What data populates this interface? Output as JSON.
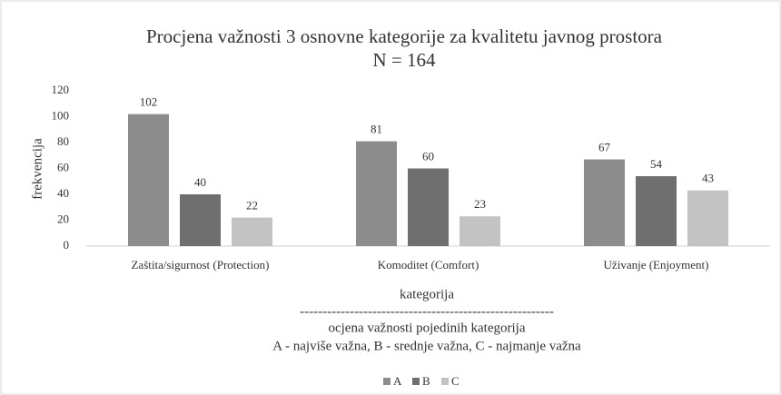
{
  "chart_data": {
    "type": "bar",
    "title": "Procjena važnosti 3 osnovne kategorije za kvalitetu javnog prostora",
    "subtitle": "N = 164",
    "ylabel": "frekvencija",
    "xlabel": [
      "kategorija",
      "--------------------------------------------------------",
      "ocjena važnosti pojedinih kategorija",
      "A - najviše važna, B - srednje važna, C - najmanje važna"
    ],
    "categories": [
      "Zaštita/sigurnost (Protection)",
      "Komoditet (Comfort)",
      "Uživanje (Enjoyment)"
    ],
    "series": [
      {
        "name": "A",
        "color": "#8c8c8c",
        "values": [
          102,
          81,
          67
        ]
      },
      {
        "name": "B",
        "color": "#6f6f6f",
        "values": [
          40,
          60,
          54
        ]
      },
      {
        "name": "C",
        "color": "#c3c3c3",
        "values": [
          22,
          23,
          43
        ]
      }
    ],
    "ylim": [
      0,
      120
    ],
    "yticks": [
      0,
      20,
      40,
      60,
      80,
      100,
      120
    ],
    "grid": false,
    "legend": "bottom"
  }
}
